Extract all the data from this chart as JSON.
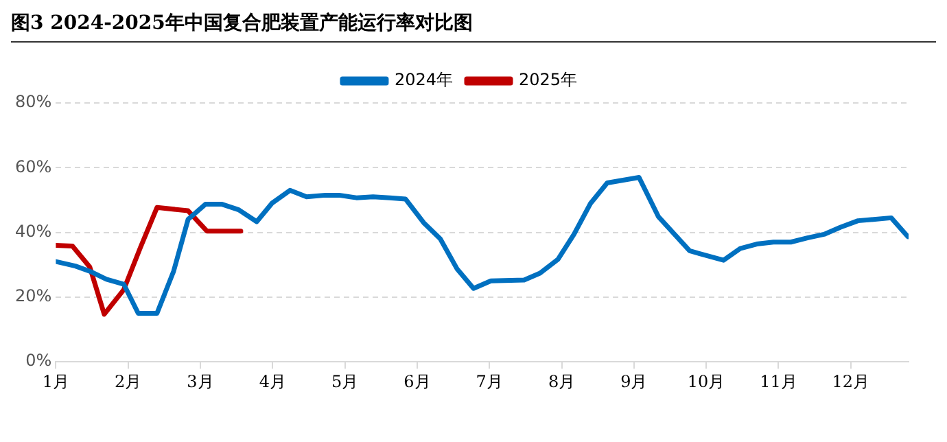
{
  "chart_data": {
    "type": "line",
    "title": "图3 2024-2025年中国复合肥装置产能运行率对比图",
    "series": [
      {
        "name": "2024年",
        "color": "#0070c0",
        "x": [
          1.0,
          1.27,
          1.47,
          1.7,
          1.94,
          2.14,
          2.4,
          2.63,
          2.83,
          3.07,
          3.3,
          3.53,
          3.78,
          3.99,
          4.24,
          4.47,
          4.73,
          4.92,
          5.16,
          5.39,
          5.62,
          5.84,
          6.09,
          6.32,
          6.55,
          6.78,
          7.02,
          7.48,
          7.7,
          7.95,
          8.17,
          8.4,
          8.63,
          9.07,
          9.34,
          9.77,
          10.24,
          10.47,
          10.7,
          10.93,
          11.17,
          11.4,
          11.63,
          11.86,
          12.1,
          12.56,
          12.79
        ],
        "values": [
          31,
          29.6,
          28,
          25.5,
          24,
          15,
          15,
          28,
          44,
          48.7,
          48.7,
          47,
          43.3,
          49,
          53,
          51,
          51.5,
          51.5,
          50.7,
          51,
          50.7,
          50.3,
          43,
          38,
          28.8,
          22.7,
          25,
          25.3,
          27.4,
          31.7,
          39.4,
          49,
          55.3,
          57,
          44.8,
          34.3,
          31.4,
          35,
          36.4,
          37,
          37,
          38.3,
          39.4,
          41.6,
          43.6,
          44.5,
          38.7
        ]
      },
      {
        "name": "2025年",
        "color": "#c00000",
        "x": [
          1.0,
          1.23,
          1.47,
          1.67,
          1.94,
          2.17,
          2.4,
          2.83,
          3.09,
          3.56
        ],
        "values": [
          36,
          35.8,
          29.3,
          14.7,
          22.3,
          35.3,
          47.7,
          46.7,
          40.4,
          40.4
        ]
      }
    ],
    "xlim": [
      1,
      12.8
    ],
    "xticks": [
      {
        "value": 1,
        "label": "1月"
      },
      {
        "value": 2,
        "label": "2月"
      },
      {
        "value": 3,
        "label": "3月"
      },
      {
        "value": 4,
        "label": "4月"
      },
      {
        "value": 5,
        "label": "5月"
      },
      {
        "value": 6,
        "label": "6月"
      },
      {
        "value": 7,
        "label": "7月"
      },
      {
        "value": 8,
        "label": "8月"
      },
      {
        "value": 9,
        "label": "9月"
      },
      {
        "value": 10,
        "label": "10月"
      },
      {
        "value": 11,
        "label": "11月"
      },
      {
        "value": 12,
        "label": "12月"
      }
    ],
    "ylim": [
      0,
      80
    ],
    "yticks": [
      {
        "value": 0,
        "label": "0%"
      },
      {
        "value": 20,
        "label": "20%"
      },
      {
        "value": 40,
        "label": "40%"
      },
      {
        "value": 60,
        "label": "60%"
      },
      {
        "value": 80,
        "label": "80%"
      }
    ],
    "grid": "y",
    "legend": "top",
    "marker": "none",
    "line_style": "solid"
  }
}
